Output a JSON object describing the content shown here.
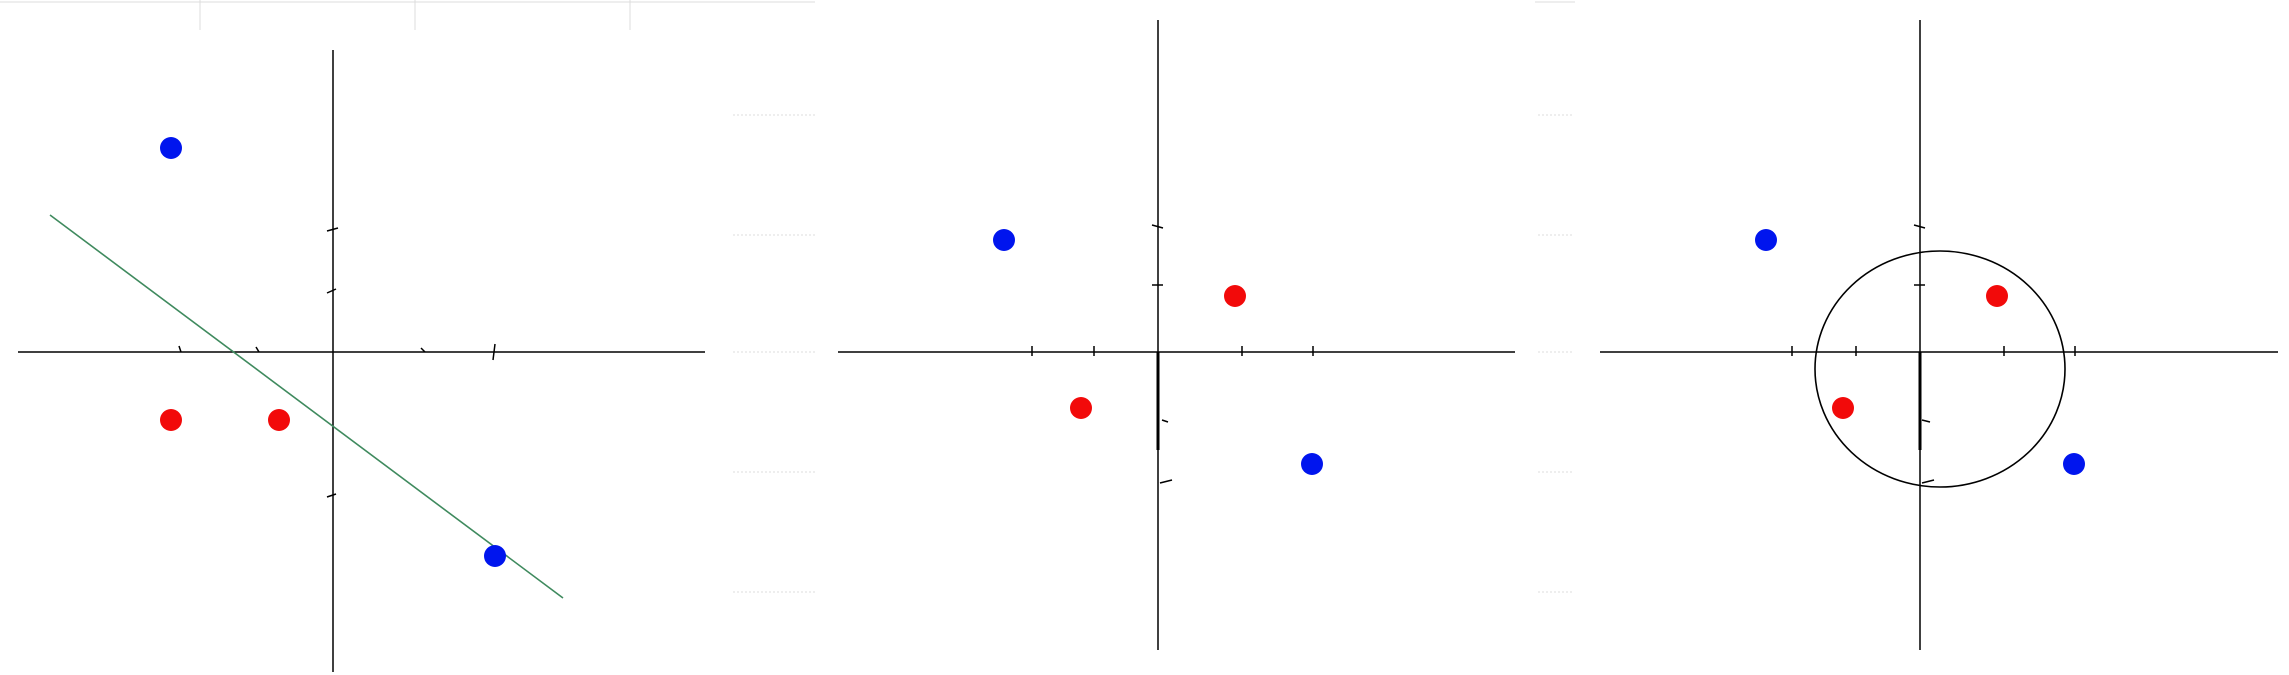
{
  "colors": {
    "background": "#ffffff",
    "axis": "#000000",
    "class_positive": "#0015ee",
    "class_negative": "#f20a0a",
    "separator_line": "#3f8a5e",
    "separator_circle": "#000000",
    "faint_guides": "#dcdcdc"
  },
  "panels": [
    {
      "id": "linear-separation",
      "separator": "line",
      "points": [
        {
          "class": "positive",
          "x": -3,
          "y": 3
        },
        {
          "class": "negative",
          "x": -3,
          "y": -1
        },
        {
          "class": "negative",
          "x": -1,
          "y": -1
        },
        {
          "class": "positive",
          "x": 3,
          "y": -3
        }
      ]
    },
    {
      "id": "point-layout",
      "separator": "none",
      "points": [
        {
          "class": "positive",
          "x": -2,
          "y": 2
        },
        {
          "class": "negative",
          "x": 1,
          "y": 1
        },
        {
          "class": "negative",
          "x": -1,
          "y": -1
        },
        {
          "class": "positive",
          "x": 2,
          "y": -2
        }
      ]
    },
    {
      "id": "circular-separation",
      "separator": "circle",
      "points": [
        {
          "class": "positive",
          "x": -2,
          "y": 2
        },
        {
          "class": "negative",
          "x": 1,
          "y": 1
        },
        {
          "class": "negative",
          "x": -1,
          "y": -1
        },
        {
          "class": "positive",
          "x": 2,
          "y": -2
        }
      ]
    }
  ]
}
